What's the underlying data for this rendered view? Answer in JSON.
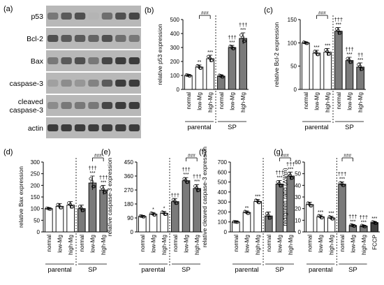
{
  "blot": {
    "panel_label": "(a)",
    "rows": [
      {
        "label": "p53",
        "intensities": [
          0.55,
          0.7,
          0.75,
          0.25,
          0.6,
          0.75,
          0.8
        ]
      },
      {
        "label": "Bcl-2",
        "intensities": [
          0.75,
          0.7,
          0.7,
          0.65,
          0.75,
          0.6,
          0.55
        ]
      },
      {
        "label": "Bax",
        "intensities": [
          0.55,
          0.7,
          0.75,
          0.55,
          0.8,
          0.85,
          0.85
        ]
      },
      {
        "label": "caspase-3",
        "intensities": [
          0.35,
          0.45,
          0.4,
          0.5,
          0.7,
          0.85,
          0.85
        ]
      },
      {
        "label": "cleaved caspase-3",
        "intensities": [
          0.45,
          0.55,
          0.55,
          0.55,
          0.8,
          0.85,
          0.85
        ]
      },
      {
        "label": "actin",
        "intensities": [
          0.85,
          0.85,
          0.85,
          0.85,
          0.85,
          0.85,
          0.85
        ]
      }
    ]
  },
  "colors": {
    "parental_bar": "#ffffff",
    "sp_bar": "#7a7a7a",
    "fccp_bar": "#404040",
    "stroke": "#000000"
  },
  "chart_data": [
    {
      "panel": "(b)",
      "type": "bar",
      "ylabel": "relative p53 expression",
      "ylim": [
        0,
        500
      ],
      "yticks": [
        0,
        100,
        200,
        300,
        400,
        500
      ],
      "categories": [
        "normal",
        "low-Mg",
        "high-Mg",
        "normal",
        "low-Mg",
        "high-Mg"
      ],
      "values": [
        100,
        160,
        220,
        95,
        300,
        365
      ],
      "errors": [
        5,
        15,
        25,
        10,
        15,
        40
      ],
      "fills": [
        "p",
        "p",
        "p",
        "s",
        "s",
        "s"
      ],
      "stars": [
        "",
        "**",
        "***",
        "",
        "***",
        "***"
      ],
      "daggers": [
        "",
        "",
        "",
        "",
        "†††",
        "†††"
      ],
      "groups": [
        {
          "label": "parental",
          "start": 0,
          "end": 2
        },
        {
          "label": "SP",
          "start": 3,
          "end": 5
        }
      ],
      "divider_after": 2,
      "bracket": {
        "label": "###",
        "from": 1,
        "to": 2
      }
    },
    {
      "panel": "(c)",
      "type": "bar",
      "ylabel": "relative Bcl-2 expression",
      "ylim": [
        0,
        150
      ],
      "yticks": [
        0,
        50,
        100,
        150
      ],
      "categories": [
        "normal",
        "low-Mg",
        "high-Mg",
        "normal",
        "low-Mg",
        "high-Mg"
      ],
      "values": [
        100,
        78,
        80,
        125,
        62,
        48
      ],
      "errors": [
        2,
        6,
        8,
        8,
        7,
        9
      ],
      "fills": [
        "p",
        "p",
        "p",
        "s",
        "s",
        "s"
      ],
      "stars": [
        "",
        "***",
        "***",
        "***",
        "***",
        "***"
      ],
      "daggers": [
        "",
        "",
        "",
        "†††",
        "†††",
        "††"
      ],
      "groups": [
        {
          "label": "parental",
          "start": 0,
          "end": 2
        },
        {
          "label": "SP",
          "start": 3,
          "end": 5
        }
      ],
      "divider_after": 2,
      "bracket": {
        "label": "###",
        "from": 1,
        "to": 2
      }
    },
    {
      "panel": "(d)",
      "type": "bar",
      "ylabel": "relative Bax expression",
      "ylim": [
        0,
        300
      ],
      "yticks": [
        0,
        50,
        100,
        150,
        200,
        250,
        300
      ],
      "categories": [
        "normal",
        "low-Mg",
        "high-Mg",
        "normal",
        "low-Mg",
        "high-Mg"
      ],
      "values": [
        100,
        110,
        115,
        100,
        210,
        180
      ],
      "errors": [
        3,
        12,
        15,
        15,
        30,
        20
      ],
      "fills": [
        "p",
        "p",
        "p",
        "s",
        "s",
        "s"
      ],
      "stars": [
        "",
        "",
        "",
        "",
        "***",
        "***"
      ],
      "daggers": [
        "",
        "",
        "",
        "",
        "†††",
        "†††"
      ],
      "groups": [
        {
          "label": "parental",
          "start": 0,
          "end": 2
        },
        {
          "label": "SP",
          "start": 3,
          "end": 5
        }
      ],
      "divider_after": 2,
      "bracket": {
        "label": "###",
        "from": 4,
        "to": 5
      }
    },
    {
      "panel": "(e)",
      "type": "bar",
      "ylabel": "relative caspase-3 expression",
      "ylim": [
        0,
        450
      ],
      "yticks": [
        0,
        90,
        180,
        270,
        360,
        450
      ],
      "categories": [
        "normal",
        "low-Mg",
        "high-Mg",
        "normal",
        "low-Mg",
        "high-Mg"
      ],
      "values": [
        100,
        115,
        120,
        195,
        330,
        280
      ],
      "errors": [
        4,
        10,
        12,
        20,
        20,
        25
      ],
      "fills": [
        "p",
        "p",
        "p",
        "s",
        "s",
        "s"
      ],
      "stars": [
        "",
        "*",
        "*",
        "",
        "***",
        "***"
      ],
      "daggers": [
        "",
        "",
        "",
        "†††",
        "†††",
        "†††"
      ],
      "groups": [
        {
          "label": "parental",
          "start": 0,
          "end": 2
        },
        {
          "label": "SP",
          "start": 3,
          "end": 5
        }
      ],
      "divider_after": 2,
      "bracket": {
        "label": "###",
        "from": 4,
        "to": 5
      }
    },
    {
      "panel": "(f)",
      "type": "bar",
      "ylabel": "relative cleaved caspase-3 expression",
      "ylim": [
        0,
        700
      ],
      "yticks": [
        0,
        100,
        200,
        300,
        400,
        500,
        600,
        700
      ],
      "categories": [
        "normal",
        "low-Mg",
        "high-Mg",
        "normal",
        "low-Mg",
        "high-Mg"
      ],
      "values": [
        100,
        195,
        305,
        160,
        480,
        560
      ],
      "errors": [
        4,
        15,
        20,
        40,
        35,
        40
      ],
      "fills": [
        "p",
        "p",
        "p",
        "s",
        "s",
        "s"
      ],
      "stars": [
        "",
        "**",
        "***",
        "",
        "***",
        "***"
      ],
      "daggers": [
        "",
        "",
        "",
        "",
        "†††",
        "†††"
      ],
      "groups": [
        {
          "label": "parental",
          "start": 0,
          "end": 2
        },
        {
          "label": "SP",
          "start": 3,
          "end": 5
        }
      ],
      "divider_after": 2,
      "bracket": {
        "label": "###",
        "from": 4,
        "to": 5
      }
    },
    {
      "panel": "(g)",
      "type": "bar",
      "ylabel": "red/green ratio (ΔΨm)",
      "ylim": [
        0,
        60
      ],
      "yticks": [
        0,
        10,
        20,
        30,
        40,
        50,
        60
      ],
      "categories": [
        "normal",
        "low-Mg",
        "high-Mg",
        "normal",
        "low-Mg",
        "high-Mg",
        "FCCP"
      ],
      "values": [
        23.5,
        13,
        12,
        41,
        5.5,
        5,
        8
      ],
      "errors": [
        2,
        1.5,
        1.5,
        2,
        0.8,
        0.8,
        1
      ],
      "fills": [
        "p",
        "p",
        "p",
        "s",
        "s",
        "s",
        "f"
      ],
      "stars": [
        "",
        "***",
        "***",
        "***",
        "***",
        "***",
        "***"
      ],
      "daggers": [
        "",
        "",
        "",
        "†††",
        "†††",
        "†††",
        ""
      ],
      "groups": [
        {
          "label": "parental",
          "start": 0,
          "end": 2
        },
        {
          "label": "SP",
          "start": 3,
          "end": 5
        }
      ],
      "divider_after": 2,
      "bracket": {
        "label": "###",
        "from": 3,
        "to": 4
      }
    }
  ]
}
